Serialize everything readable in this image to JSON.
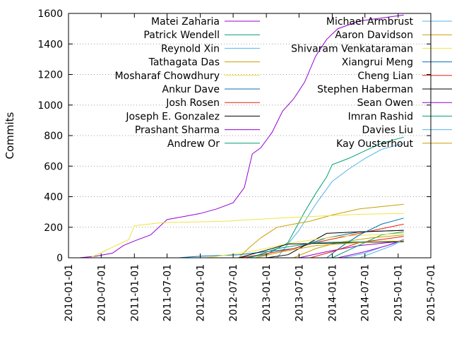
{
  "chart_data": {
    "type": "line",
    "title": "",
    "xlabel": "",
    "ylabel": "Commits",
    "xlim": [
      "2010-01-01",
      "2015-07-01"
    ],
    "ylim": [
      0,
      1600
    ],
    "y_ticks": [
      0,
      200,
      400,
      600,
      800,
      1000,
      1200,
      1400,
      1600
    ],
    "x_ticks": [
      "2010-01-01",
      "2010-07-01",
      "2011-01-01",
      "2011-07-01",
      "2012-01-01",
      "2012-07-01",
      "2013-01-01",
      "2013-07-01",
      "2014-01-01",
      "2014-07-01",
      "2015-01-01",
      "2015-07-01"
    ],
    "grid": "horizontal-dotted",
    "legend_position": "top",
    "series": [
      {
        "name": "Matei Zaharia",
        "color": "#9400d3",
        "points": [
          [
            "2010-03-01",
            0
          ],
          [
            "2010-06-01",
            10
          ],
          [
            "2010-09-01",
            30
          ],
          [
            "2010-11-01",
            80
          ],
          [
            "2011-01-01",
            110
          ],
          [
            "2011-04-01",
            150
          ],
          [
            "2011-07-01",
            250
          ],
          [
            "2011-10-01",
            270
          ],
          [
            "2012-01-01",
            290
          ],
          [
            "2012-04-01",
            320
          ],
          [
            "2012-07-01",
            360
          ],
          [
            "2012-09-01",
            460
          ],
          [
            "2012-10-15",
            680
          ],
          [
            "2012-12-01",
            720
          ],
          [
            "2013-02-01",
            820
          ],
          [
            "2013-04-01",
            960
          ],
          [
            "2013-06-01",
            1040
          ],
          [
            "2013-08-01",
            1150
          ],
          [
            "2013-10-01",
            1320
          ],
          [
            "2013-12-01",
            1430
          ],
          [
            "2014-02-01",
            1500
          ],
          [
            "2014-06-01",
            1550
          ],
          [
            "2014-10-01",
            1570
          ],
          [
            "2015-02-01",
            1590
          ]
        ]
      },
      {
        "name": "Patrick Wendell",
        "color": "#009e73",
        "points": [
          [
            "2012-09-01",
            0
          ],
          [
            "2013-01-01",
            20
          ],
          [
            "2013-05-01",
            100
          ],
          [
            "2013-08-01",
            300
          ],
          [
            "2013-10-01",
            420
          ],
          [
            "2013-12-01",
            530
          ],
          [
            "2014-01-01",
            610
          ],
          [
            "2014-04-01",
            650
          ],
          [
            "2014-07-01",
            700
          ],
          [
            "2014-10-01",
            750
          ],
          [
            "2015-02-01",
            790
          ]
        ]
      },
      {
        "name": "Reynold Xin",
        "color": "#56b4e9",
        "points": [
          [
            "2013-03-01",
            0
          ],
          [
            "2013-07-01",
            180
          ],
          [
            "2013-10-01",
            350
          ],
          [
            "2014-01-01",
            500
          ],
          [
            "2014-04-01",
            580
          ],
          [
            "2014-07-01",
            650
          ],
          [
            "2014-10-01",
            710
          ],
          [
            "2015-02-01",
            750
          ]
        ]
      },
      {
        "name": "Tathagata Das",
        "color": "#c8a000",
        "points": [
          [
            "2012-08-01",
            0
          ],
          [
            "2012-10-01",
            70
          ],
          [
            "2012-12-01",
            130
          ],
          [
            "2013-03-01",
            200
          ],
          [
            "2013-06-01",
            220
          ],
          [
            "2013-09-01",
            240
          ],
          [
            "2014-01-01",
            280
          ],
          [
            "2014-06-01",
            320
          ],
          [
            "2015-02-01",
            350
          ]
        ]
      },
      {
        "name": "Mosharaf Chowdhury",
        "color": "#f0e442",
        "points": [
          [
            "2010-05-01",
            0
          ],
          [
            "2010-12-01",
            120
          ],
          [
            "2011-01-01",
            210
          ],
          [
            "2011-06-01",
            230
          ],
          [
            "2012-06-01",
            240
          ],
          [
            "2012-08-01",
            245
          ],
          [
            "2013-06-01",
            265
          ],
          [
            "2014-06-01",
            285
          ],
          [
            "2015-02-01",
            290
          ]
        ]
      },
      {
        "name": "Ankur Dave",
        "color": "#0072b2",
        "points": [
          [
            "2011-09-01",
            0
          ],
          [
            "2012-01-01",
            10
          ],
          [
            "2012-08-01",
            20
          ],
          [
            "2013-06-01",
            60
          ],
          [
            "2013-12-01",
            130
          ],
          [
            "2014-06-01",
            170
          ],
          [
            "2015-02-01",
            180
          ]
        ]
      },
      {
        "name": "Josh Rosen",
        "color": "#e51e10",
        "points": [
          [
            "2012-08-01",
            0
          ],
          [
            "2012-12-01",
            20
          ],
          [
            "2013-06-01",
            60
          ],
          [
            "2013-10-01",
            100
          ],
          [
            "2014-02-01",
            130
          ],
          [
            "2014-06-01",
            160
          ],
          [
            "2014-10-01",
            190
          ],
          [
            "2015-02-01",
            220
          ]
        ]
      },
      {
        "name": "Joseph E. Gonzalez",
        "color": "#000000",
        "points": [
          [
            "2013-01-01",
            0
          ],
          [
            "2013-05-01",
            20
          ],
          [
            "2013-10-01",
            120
          ],
          [
            "2013-12-01",
            160
          ],
          [
            "2014-06-01",
            170
          ],
          [
            "2015-02-01",
            180
          ]
        ]
      },
      {
        "name": "Prashant Sharma",
        "color": "#9400d3",
        "points": [
          [
            "2013-07-01",
            0
          ],
          [
            "2013-12-01",
            40
          ],
          [
            "2014-06-01",
            80
          ],
          [
            "2015-02-01",
            110
          ]
        ]
      },
      {
        "name": "Andrew Or",
        "color": "#009e73",
        "points": [
          [
            "2014-01-01",
            0
          ],
          [
            "2014-04-01",
            50
          ],
          [
            "2014-07-01",
            100
          ],
          [
            "2014-10-01",
            150
          ],
          [
            "2015-02-01",
            170
          ]
        ]
      },
      {
        "name": "Michael Armbrust",
        "color": "#56b4e9",
        "points": [
          [
            "2014-03-01",
            0
          ],
          [
            "2014-07-01",
            30
          ],
          [
            "2014-10-01",
            70
          ],
          [
            "2015-02-01",
            110
          ]
        ]
      },
      {
        "name": "Aaron Davidson",
        "color": "#c8a000",
        "points": [
          [
            "2013-06-01",
            0
          ],
          [
            "2013-10-01",
            60
          ],
          [
            "2014-02-01",
            100
          ],
          [
            "2014-08-01",
            130
          ],
          [
            "2015-02-01",
            150
          ]
        ]
      },
      {
        "name": "Shivaram Venkataraman",
        "color": "#f0e442",
        "points": [
          [
            "2012-02-01",
            0
          ],
          [
            "2012-10-01",
            40
          ],
          [
            "2013-06-01",
            100
          ],
          [
            "2014-02-01",
            140
          ],
          [
            "2015-02-01",
            160
          ]
        ]
      },
      {
        "name": "Xiangrui Meng",
        "color": "#0072b2",
        "points": [
          [
            "2013-12-01",
            0
          ],
          [
            "2014-03-01",
            80
          ],
          [
            "2014-06-01",
            150
          ],
          [
            "2014-10-01",
            220
          ],
          [
            "2015-02-01",
            260
          ]
        ]
      },
      {
        "name": "Cheng Lian",
        "color": "#e51e10",
        "points": [
          [
            "2013-09-01",
            0
          ],
          [
            "2014-01-01",
            40
          ],
          [
            "2014-06-01",
            100
          ],
          [
            "2015-02-01",
            140
          ]
        ]
      },
      {
        "name": "Stephen Haberman",
        "color": "#000000",
        "points": [
          [
            "2012-08-01",
            0
          ],
          [
            "2013-01-01",
            50
          ],
          [
            "2013-05-01",
            90
          ],
          [
            "2014-06-01",
            100
          ],
          [
            "2015-02-01",
            105
          ]
        ]
      },
      {
        "name": "Sean Owen",
        "color": "#9400d3",
        "points": [
          [
            "2014-02-01",
            0
          ],
          [
            "2014-07-01",
            40
          ],
          [
            "2014-11-01",
            80
          ],
          [
            "2015-02-01",
            120
          ]
        ]
      },
      {
        "name": "Imran Rashid",
        "color": "#009e73",
        "points": [
          [
            "2012-10-01",
            0
          ],
          [
            "2013-03-01",
            60
          ],
          [
            "2013-10-01",
            100
          ],
          [
            "2014-08-01",
            105
          ],
          [
            "2015-02-01",
            110
          ]
        ]
      },
      {
        "name": "Davies Liu",
        "color": "#56b4e9",
        "points": [
          [
            "2014-06-01",
            0
          ],
          [
            "2014-09-01",
            40
          ],
          [
            "2014-12-01",
            80
          ],
          [
            "2015-02-01",
            120
          ]
        ]
      },
      {
        "name": "Kay Ousterhout",
        "color": "#c8a000",
        "points": [
          [
            "2012-11-01",
            0
          ],
          [
            "2013-04-01",
            40
          ],
          [
            "2013-10-01",
            80
          ],
          [
            "2014-06-01",
            100
          ],
          [
            "2015-02-01",
            110
          ]
        ]
      }
    ]
  }
}
